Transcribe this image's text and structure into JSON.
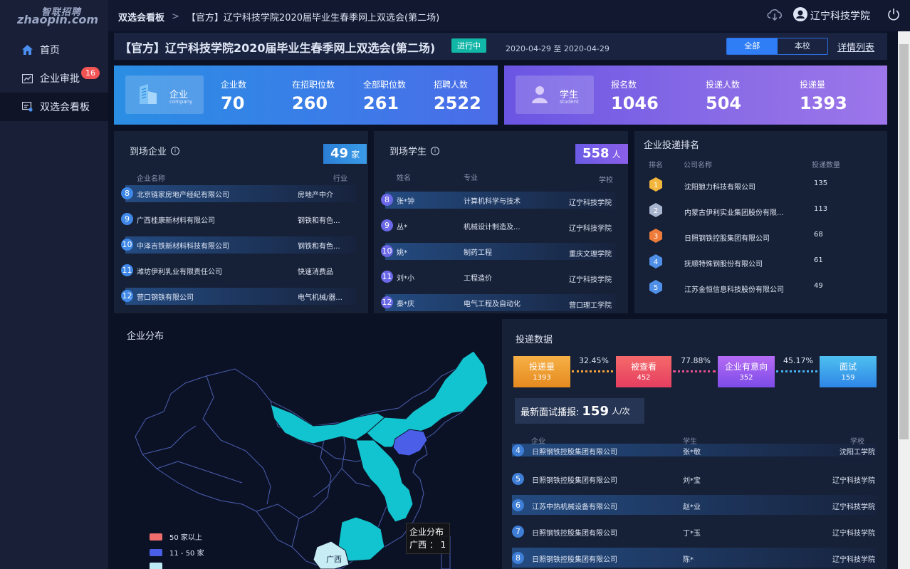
{
  "logo": {
    "cn": "智联招聘",
    "en": "zhaopin.com"
  },
  "sidebar": {
    "items": [
      {
        "label": "首页",
        "icon": "home-icon"
      },
      {
        "label": "企业审批",
        "icon": "chart-icon",
        "badge": "16"
      },
      {
        "label": "双选会看板",
        "icon": "board-icon"
      }
    ]
  },
  "header": {
    "crumb_root": "双选会看板",
    "crumb_current": "【官方】辽宁科技学院2020届毕业生春季网上双选会(第二场)",
    "user": "辽宁科技学院"
  },
  "title_bar": {
    "title": "【官方】辽宁科技学院2020届毕业生春季网上双选会(第二场)",
    "status": "进行中",
    "date_range": "2020-04-29 至 2020-04-29",
    "seg_all": "全部",
    "seg_school": "本校",
    "detail_link": "详情列表"
  },
  "stats_company": {
    "name": "企业",
    "sub": "company",
    "items": [
      {
        "label": "企业数",
        "value": "70"
      },
      {
        "label": "在招职位数",
        "value": "260"
      },
      {
        "label": "全部职位数",
        "value": "261"
      },
      {
        "label": "招聘人数",
        "value": "2522"
      }
    ]
  },
  "stats_student": {
    "name": "学生",
    "sub": "student",
    "items": [
      {
        "label": "报名数",
        "value": "1046"
      },
      {
        "label": "投递人数",
        "value": "504"
      },
      {
        "label": "投递量",
        "value": "1393"
      }
    ]
  },
  "companies_panel": {
    "title": "到场企业",
    "count": "49",
    "unit": "家",
    "col_name": "企业名称",
    "col_industry": "行业",
    "rows": [
      {
        "num": "8",
        "name": "北京链家房地产经纪有限公司",
        "industry": "房地产中介"
      },
      {
        "num": "9",
        "name": "广西桂康新材料有限公司",
        "industry": "钢铁和有色..."
      },
      {
        "num": "10",
        "name": "中泽吉铁新材料科技有限公司",
        "industry": "钢铁和有色..."
      },
      {
        "num": "11",
        "name": "潍坊伊利乳业有限责任公司",
        "industry": "快速消费品"
      },
      {
        "num": "12",
        "name": "营口钢铁有限公司",
        "industry": "电气机械/器..."
      }
    ]
  },
  "students_panel": {
    "title": "到场学生",
    "count": "558",
    "unit": "人",
    "col_name": "姓名",
    "col_major": "专业",
    "col_school": "学校",
    "rows": [
      {
        "num": "8",
        "name": "张*钟",
        "major": "计算机科学与技术",
        "school": "辽宁科技学院"
      },
      {
        "num": "9",
        "name": "丛*",
        "major": "机械设计制造及...",
        "school": "辽宁科技学院"
      },
      {
        "num": "10",
        "name": "姚*",
        "major": "制药工程",
        "school": "重庆文理学院"
      },
      {
        "num": "11",
        "name": "刘*小",
        "major": "工程造价",
        "school": "辽宁科技学院"
      },
      {
        "num": "12",
        "name": "秦*庆",
        "major": "电气工程及自动化",
        "school": "营口理工学院"
      }
    ]
  },
  "ranking_panel": {
    "title": "企业投递排名",
    "col_rank": "排名",
    "col_name": "公司名称",
    "col_count": "投递数量",
    "rows": [
      {
        "rank": "1",
        "name": "沈阳狼力科技有限公司",
        "count": "135",
        "color": "#f2b63c"
      },
      {
        "rank": "2",
        "name": "内蒙古伊利实业集团股份有限...",
        "count": "113",
        "color": "#a8b5cf"
      },
      {
        "rank": "3",
        "name": "日照钢铁控股集团有限公司",
        "count": "68",
        "color": "#ef7b3a"
      },
      {
        "rank": "4",
        "name": "抚顺特殊钢股份有限公司",
        "count": "61",
        "color": "#4f8fe8"
      },
      {
        "rank": "5",
        "name": "江苏金恒信息科技股份有限公司",
        "count": "49",
        "color": "#4f8fe8"
      }
    ]
  },
  "map_panel": {
    "title": "企业分布",
    "legend": [
      {
        "label": "50 家以上",
        "color": "#f06d6d"
      },
      {
        "label": "11 - 50 家",
        "color": "#4a5ee8"
      }
    ],
    "highlight_label": "广西",
    "tooltip_title": "企业分布",
    "tooltip_value": "广西 ： 1"
  },
  "delivery_panel": {
    "title": "投递数据",
    "funnel": [
      {
        "label": "投递量",
        "value": "1393",
        "color": "#f2a23a"
      },
      {
        "label": "被查看",
        "value": "452",
        "color": "#f0526a"
      },
      {
        "label": "企业有意向",
        "value": "352",
        "color": "#9d5cf0"
      },
      {
        "label": "面试",
        "value": "159",
        "color": "#3aa5ec"
      }
    ],
    "rates": [
      "32.45%",
      "77.88%",
      "45.17%"
    ],
    "broadcast_label": "最新面试播报:",
    "broadcast_count": "159",
    "broadcast_unit": "人/次",
    "col_company": "企业",
    "col_student": "学生",
    "col_school": "学校",
    "rows": [
      {
        "num": "4",
        "company": "日照钢铁控股集团有限公司",
        "student": "张*敬",
        "school": "沈阳工学院"
      },
      {
        "num": "5",
        "company": "日照钢铁控股集团有限公司",
        "student": "刘*宝",
        "school": "辽宁科技学院"
      },
      {
        "num": "6",
        "company": "江苏中热机械设备有限公司",
        "student": "赵*业",
        "school": "辽宁科技学院"
      },
      {
        "num": "7",
        "company": "日照钢铁控股集团有限公司",
        "student": "丁*玉",
        "school": "辽宁科技学院"
      },
      {
        "num": "8",
        "company": "日照钢铁控股集团有限公司",
        "student": "陈*",
        "school": "辽宁科技学院"
      }
    ]
  }
}
